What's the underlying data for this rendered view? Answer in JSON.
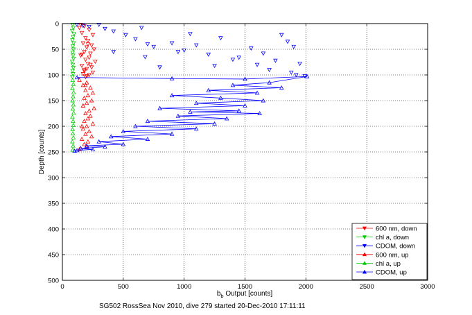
{
  "chart_data": {
    "type": "scatter",
    "title": "",
    "footer": "SG502 RossSea Nov 2010, dive 279 started 20-Dec-2010 17:11:11",
    "xlabel_main": "b",
    "xlabel_sub": "b",
    "xlabel_rest": " Output [counts]",
    "ylabel": "Depth [counts]",
    "xlim": [
      0,
      3000
    ],
    "ylim": [
      0,
      500
    ],
    "y_reversed": true,
    "grid": true,
    "legend_position": "bottom-right",
    "xticks": [
      "0",
      "500",
      "1000",
      "1500",
      "2000",
      "2500",
      "3000"
    ],
    "yticks": [
      "0",
      "50",
      "100",
      "150",
      "200",
      "250",
      "300",
      "350",
      "400",
      "450",
      "500"
    ],
    "series": [
      {
        "name": "600 nm, down",
        "color": "#ff0000",
        "marker": "tri-down",
        "line": false,
        "x": [
          150,
          180,
          140,
          220,
          160,
          250,
          190,
          210,
          170,
          240,
          200,
          260,
          180,
          230,
          150,
          220,
          190,
          270,
          210,
          160,
          240,
          200,
          180,
          250,
          170,
          220,
          200,
          190,
          230,
          160,
          210,
          180
        ],
        "y": [
          2,
          5,
          8,
          12,
          18,
          22,
          28,
          33,
          38,
          42,
          46,
          50,
          55,
          58,
          62,
          66,
          70,
          74,
          78,
          82,
          85,
          88,
          92,
          95,
          98,
          100,
          102,
          104,
          80,
          60,
          40,
          90
        ]
      },
      {
        "name": "chl a, down",
        "color": "#00cc00",
        "marker": "tri-down",
        "line": false,
        "x": [
          85,
          90,
          80,
          95,
          88,
          82,
          92,
          86,
          90,
          84,
          88,
          92,
          80,
          86,
          90,
          84,
          88,
          82
        ],
        "y": [
          2,
          8,
          14,
          20,
          26,
          32,
          38,
          44,
          50,
          56,
          62,
          68,
          74,
          80,
          86,
          92,
          98,
          104
        ]
      },
      {
        "name": "CDOM, down",
        "color": "#0000ff",
        "marker": "tri-down",
        "line": false,
        "x": [
          120,
          170,
          220,
          300,
          350,
          420,
          520,
          600,
          650,
          700,
          420,
          750,
          900,
          1100,
          950,
          1300,
          1200,
          1550,
          1050,
          680,
          1400,
          1650,
          1800,
          1850,
          1900,
          1750,
          1950,
          1600,
          1250,
          800,
          1000,
          1450,
          1700,
          1880,
          1920,
          1990
        ],
        "y": [
          2,
          4,
          6,
          2,
          10,
          15,
          22,
          30,
          8,
          40,
          55,
          45,
          38,
          42,
          55,
          28,
          60,
          48,
          20,
          65,
          70,
          58,
          22,
          35,
          45,
          72,
          78,
          80,
          82,
          85,
          52,
          66,
          90,
          95,
          100,
          102
        ]
      },
      {
        "name": "600 nm, up",
        "color": "#ff0000",
        "marker": "tri-up",
        "line": false,
        "x": [
          140,
          200,
          170,
          230,
          190,
          250,
          210,
          180,
          240,
          200,
          170,
          260,
          220,
          190,
          230,
          210,
          180,
          250,
          200,
          170,
          220,
          190,
          240,
          160,
          210,
          180,
          200,
          150,
          190,
          170,
          160,
          140
        ],
        "y": [
          110,
          115,
          120,
          125,
          130,
          135,
          140,
          145,
          150,
          155,
          160,
          165,
          170,
          175,
          180,
          185,
          190,
          195,
          200,
          205,
          210,
          215,
          220,
          225,
          230,
          235,
          240,
          243,
          120,
          160,
          200,
          245
        ]
      },
      {
        "name": "chl a, up",
        "color": "#00cc00",
        "marker": "tri-up",
        "line": false,
        "x": [
          85,
          90,
          82,
          92,
          88,
          84,
          90,
          86,
          92,
          82,
          88,
          90,
          84,
          86,
          90,
          82,
          88,
          85
        ],
        "y": [
          110,
          118,
          126,
          134,
          142,
          150,
          158,
          166,
          174,
          182,
          190,
          198,
          206,
          214,
          222,
          230,
          238,
          246
        ]
      },
      {
        "name": "CDOM, up",
        "color": "#0000ff",
        "marker": "tri-up",
        "line": true,
        "x": [
          120,
          900,
          1500,
          2010,
          1700,
          1400,
          1800,
          1200,
          1600,
          900,
          1300,
          1650,
          1100,
          1500,
          800,
          1450,
          1050,
          1620,
          950,
          1350,
          700,
          1250,
          600,
          1100,
          500,
          900,
          400,
          700,
          300,
          500,
          200,
          350,
          150,
          250,
          120,
          100
        ],
        "y": [
          105,
          107,
          108,
          103,
          115,
          120,
          125,
          130,
          135,
          140,
          145,
          150,
          155,
          160,
          165,
          170,
          172,
          175,
          180,
          185,
          190,
          195,
          200,
          205,
          210,
          215,
          220,
          225,
          230,
          235,
          238,
          240,
          243,
          245,
          247,
          248
        ]
      }
    ]
  }
}
